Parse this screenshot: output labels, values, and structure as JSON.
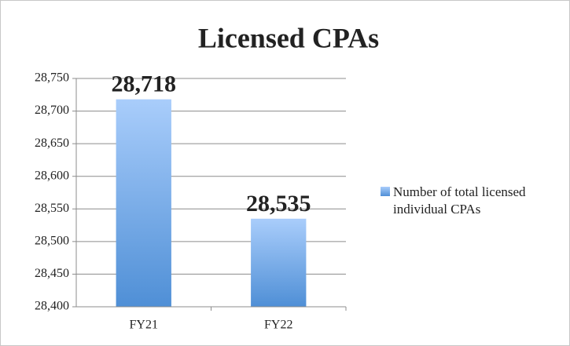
{
  "chart_data": {
    "type": "bar",
    "title": "Licensed CPAs",
    "categories": [
      "FY21",
      "FY22"
    ],
    "series": [
      {
        "name": "Number of total licensed individual CPAs",
        "color": "#4f8fd6",
        "values": [
          28718,
          28535
        ],
        "value_labels": [
          "28,718",
          "28,535"
        ]
      }
    ],
    "ylim": [
      28400,
      28750
    ],
    "yticks": [
      {
        "value": 28400,
        "label": "28,400"
      },
      {
        "value": 28450,
        "label": "28,450"
      },
      {
        "value": 28500,
        "label": "28,500"
      },
      {
        "value": 28550,
        "label": "28,550"
      },
      {
        "value": 28600,
        "label": "28,600"
      },
      {
        "value": 28650,
        "label": "28,650"
      },
      {
        "value": 28700,
        "label": "28,700"
      },
      {
        "value": 28750,
        "label": "28,750"
      }
    ],
    "grid": true,
    "legend": "right"
  }
}
